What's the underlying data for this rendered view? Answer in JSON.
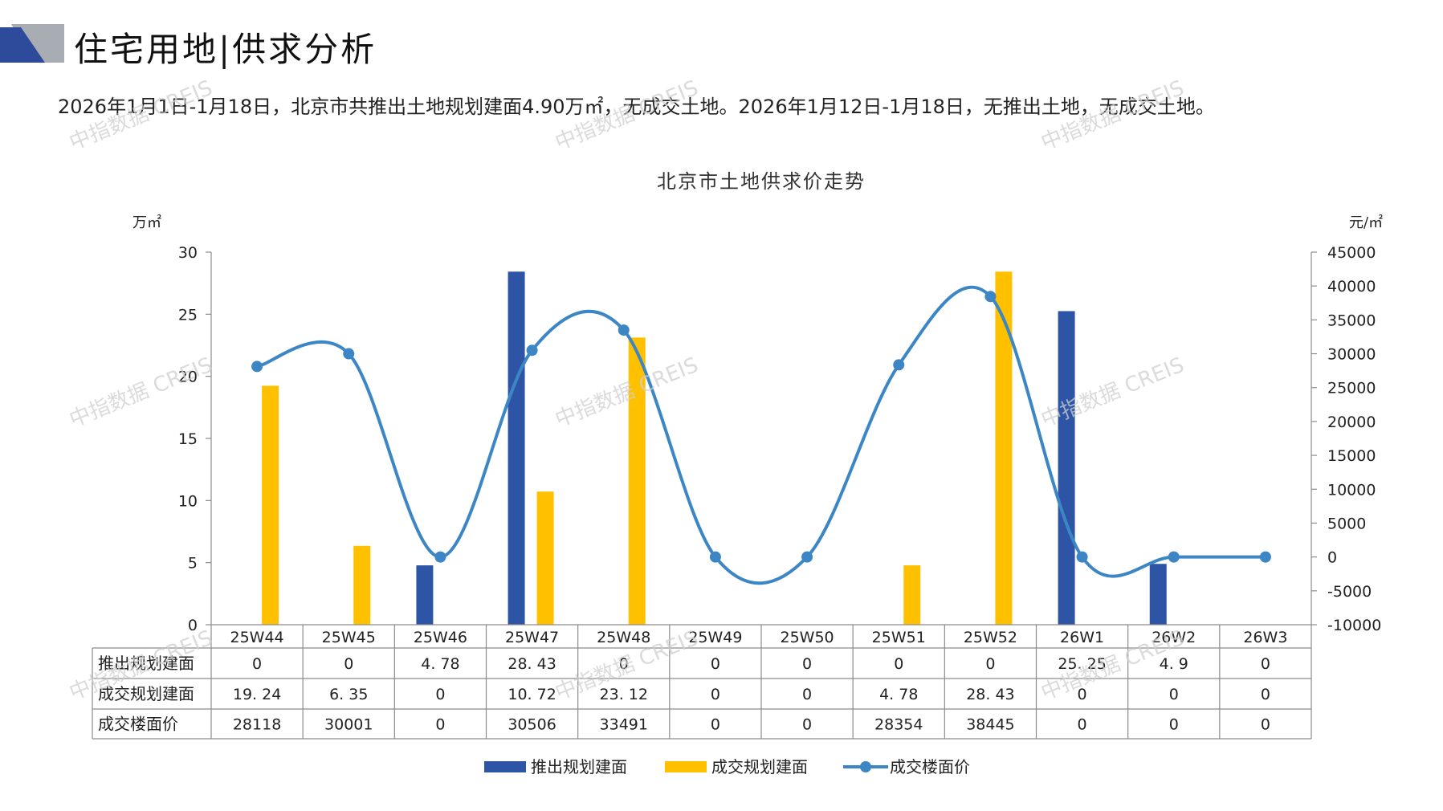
{
  "page": {
    "title": "住宅用地|供求分析",
    "summary": "2026年1月1日-1月18日，北京市共推出土地规划建面4.90万㎡，无成交土地。2026年1月12日-1月18日，无推出土地，无成交土地。",
    "watermark": "中指数据 CREIS"
  },
  "colors": {
    "supply": "#2E54A5",
    "deal_area": "#FFC000",
    "deal_price": "#3D86C6",
    "logo_dark": "#2E4A9A",
    "logo_gray": "#A8ACB3"
  },
  "chart_data": {
    "type": "bar",
    "title": "北京市土地供求价走势",
    "categories": [
      "25W44",
      "25W45",
      "25W46",
      "25W47",
      "25W48",
      "25W49",
      "25W50",
      "25W51",
      "25W52",
      "26W1",
      "26W2",
      "26W3"
    ],
    "y_left": {
      "unit": "万㎡",
      "min": 0,
      "max": 30,
      "ticks": [
        "0",
        "5",
        "10",
        "15",
        "20",
        "25",
        "30"
      ]
    },
    "y_right": {
      "unit": "元/㎡",
      "min": -10000,
      "max": 45000,
      "ticks": [
        "-10000",
        "-5000",
        "0",
        "5000",
        "10000",
        "15000",
        "20000",
        "25000",
        "30000",
        "35000",
        "40000",
        "45000"
      ]
    },
    "series": [
      {
        "name": "推出规划建面",
        "type": "bar",
        "axis": "left",
        "values": [
          0,
          0,
          4.78,
          28.43,
          0,
          0,
          0,
          0,
          0,
          25.25,
          4.9,
          0
        ],
        "labels": [
          "0",
          "0",
          "4. 78",
          "28. 43",
          "0",
          "0",
          "0",
          "0",
          "0",
          "25. 25",
          "4. 9",
          "0"
        ]
      },
      {
        "name": "成交规划建面",
        "type": "bar",
        "axis": "left",
        "values": [
          19.24,
          6.35,
          0,
          10.72,
          23.12,
          0,
          0,
          4.78,
          28.43,
          0,
          0,
          0
        ],
        "labels": [
          "19. 24",
          "6. 35",
          "0",
          "10. 72",
          "23. 12",
          "0",
          "0",
          "4. 78",
          "28. 43",
          "0",
          "0",
          "0"
        ]
      },
      {
        "name": "成交楼面价",
        "type": "line",
        "axis": "right",
        "values": [
          28118,
          30001,
          0,
          30506,
          33491,
          0,
          0,
          28354,
          38445,
          0,
          0,
          0
        ],
        "labels": [
          "28118",
          "30001",
          "0",
          "30506",
          "33491",
          "0",
          "0",
          "28354",
          "38445",
          "0",
          "0",
          "0"
        ]
      }
    ],
    "legend": "bottom"
  }
}
